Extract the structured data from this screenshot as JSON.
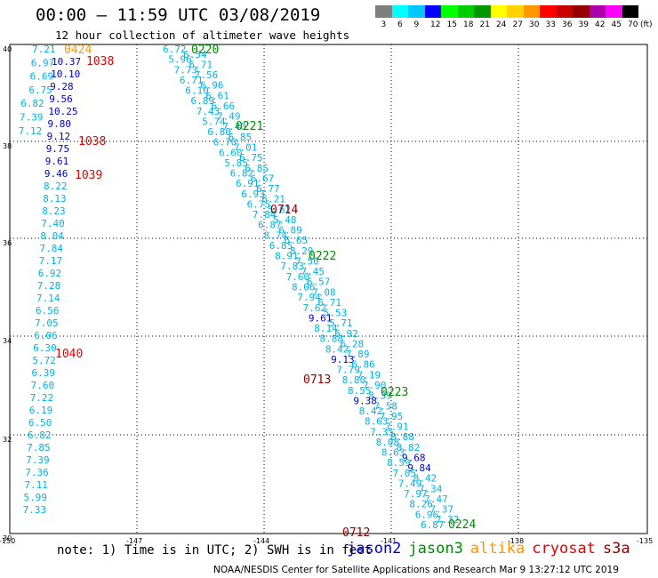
{
  "title": "00:00 – 11:59 UTC 03/08/2019",
  "subtitle": "12 hour collection of altimeter wave heights",
  "colorbar": {
    "unit": "(ft)",
    "bins": [
      {
        "label": "3",
        "color": "#7f7f7f"
      },
      {
        "label": "6",
        "color": "#00ffff"
      },
      {
        "label": "9",
        "color": "#00c8ff"
      },
      {
        "label": "12",
        "color": "#0000ff"
      },
      {
        "label": "15",
        "color": "#00ff00"
      },
      {
        "label": "18",
        "color": "#00cc00"
      },
      {
        "label": "21",
        "color": "#009600"
      },
      {
        "label": "24",
        "color": "#ffff00"
      },
      {
        "label": "27",
        "color": "#ffd200"
      },
      {
        "label": "30",
        "color": "#ff9600"
      },
      {
        "label": "33",
        "color": "#ff0000"
      },
      {
        "label": "36",
        "color": "#c80000"
      },
      {
        "label": "39",
        "color": "#960000"
      },
      {
        "label": "42",
        "color": "#aa00aa"
      },
      {
        "label": "45",
        "color": "#ff00ff"
      },
      {
        "label": "70",
        "color": "#000000"
      }
    ]
  },
  "axes": {
    "lon_ticks": [
      "-150",
      "-147",
      "-144",
      "-141",
      "-138",
      "-135"
    ],
    "lat_ticks": [
      "40",
      "38",
      "36",
      "34",
      "32",
      "30"
    ]
  },
  "sat_colors": {
    "jason2": "#0000c8",
    "jason3": "#008c00",
    "altika": "#ff9600",
    "cryosat": "#e60000",
    "s3a": "#8c0000",
    "low": "#00b4e6"
  },
  "tracks": {
    "west": {
      "values": [
        "7.21",
        "6.97",
        "6.69",
        "6.75",
        "6.82",
        "7.39",
        "7.12",
        "10.37",
        "10.10",
        "9.28",
        "9.56",
        "10.25",
        "9.80",
        "9.12",
        "9.75",
        "9.61",
        "9.46",
        "8.22",
        "8.13",
        "8.23",
        "7.40",
        "8.04",
        "7.84",
        "7.17",
        "6.92",
        "7.28",
        "7.14",
        "6.56",
        "7.05",
        "6.06",
        "6.30",
        "5.72",
        "6.39",
        "7.60",
        "7.22",
        "6.19",
        "6.50",
        "6.82",
        "7.85",
        "7.39",
        "7.36",
        "7.11",
        "5.99",
        "7.33"
      ],
      "times": [
        "0424",
        "1038",
        "1038",
        "1039",
        "1040"
      ],
      "time_sats": [
        "altika",
        "cryosat",
        "cryosat",
        "cryosat",
        "cryosat"
      ]
    },
    "middle": {
      "values": [
        "6.72",
        "6.54",
        "5.96",
        "6.71",
        "7.73",
        "7.56",
        "6.71",
        "6.96",
        "6.10",
        "6.61",
        "6.89",
        "6.66",
        "7.43",
        "7.49",
        "5.74",
        "7.40",
        "6.80",
        "6.85",
        "6.70",
        "7.01",
        "6.60",
        "6.75",
        "5.85",
        "6.85",
        "6.82",
        "6.67",
        "6.91",
        "6.77",
        "6.93",
        "6.21",
        "6.75",
        "5.62",
        "7.84",
        "5.48",
        "6.87",
        "6.89",
        "8.74",
        "6.65",
        "6.85",
        "8.29",
        "8.91",
        "7.50",
        "7.83",
        "7.45",
        "7.60",
        "6.57",
        "8.06",
        "7.08",
        "7.94",
        "6.71",
        "7.62",
        "5.53",
        "9.61",
        "5.71",
        "8.14",
        "6.92",
        "8.88",
        "6.28",
        "8.42",
        "7.89",
        "9.13",
        "6.86",
        "7.79",
        "7.19",
        "8.80",
        "7.90",
        "8.55",
        "8.39",
        "9.38",
        "7.58",
        "8.42",
        "7.95",
        "8.63",
        "7.91",
        "7.35",
        "8.88",
        "8.08",
        "8.82",
        "8.63",
        "9.68",
        "8.59",
        "9.84",
        "7.05",
        "8.42",
        "7.49",
        "7.34",
        "7.97",
        "7.47",
        "8.26",
        "7.37",
        "6.96",
        "7.32",
        "6.87"
      ],
      "times": [
        "0220",
        "0221",
        "0714",
        "0222",
        "0713",
        "0223",
        "0224",
        "0712"
      ],
      "time_sats": [
        "jason3",
        "jason3",
        "s3a",
        "jason3",
        "s3a",
        "jason3",
        "jason3",
        "s3a"
      ]
    }
  },
  "note": "note: 1) Time is in UTC; 2) SWH is in feet",
  "legend": [
    {
      "name": "jason2",
      "color": "#0000c8"
    },
    {
      "name": "jason3",
      "color": "#008c00"
    },
    {
      "name": "altika",
      "color": "#ff9600"
    },
    {
      "name": "cryosat",
      "color": "#e60000"
    },
    {
      "name": "s3a",
      "color": "#8c0000"
    }
  ],
  "footer": "NOAA/NESDIS Center for Satellite Applications and Research    Mar  9 13:27:12 UTC 2019"
}
